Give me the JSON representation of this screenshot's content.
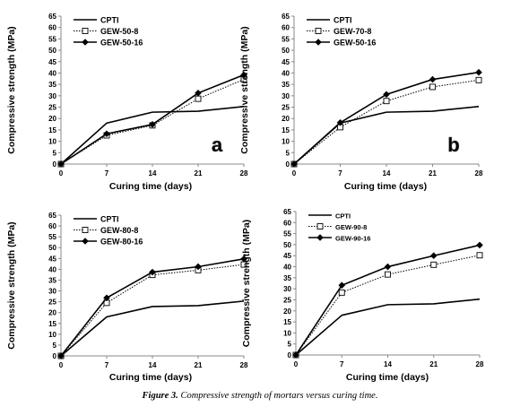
{
  "caption": {
    "label": "Figure 3.",
    "text": "Compressive strength of mortars versus curing time."
  },
  "chart_data": [
    {
      "type": "line",
      "panel_letter": "a",
      "xlabel": "Curing time (days)",
      "ylabel": "Compressive strength (MPa)",
      "x": [
        0,
        7,
        14,
        21,
        28
      ],
      "xticks": [
        0,
        7,
        14,
        21,
        28
      ],
      "ylim": [
        0,
        65
      ],
      "ytick_step": 5,
      "grid": false,
      "legend_position": "top-left",
      "series": [
        {
          "name": "CPTI",
          "marker": "none",
          "style": "solid",
          "values": [
            0,
            18,
            22.8,
            23.2,
            25.3
          ]
        },
        {
          "name": "GEW-50-8",
          "marker": "square",
          "style": "dotted",
          "values": [
            0,
            12.6,
            17,
            28.7,
            37.2
          ]
        },
        {
          "name": "GEW-50-16",
          "marker": "diamond",
          "style": "solid",
          "values": [
            0,
            13.3,
            17.4,
            31.2,
            39.2
          ]
        }
      ]
    },
    {
      "type": "line",
      "panel_letter": "b",
      "xlabel": "Curing time (days)",
      "ylabel": "Compressive strength (MPa)",
      "x": [
        0,
        7,
        14,
        21,
        28
      ],
      "xticks": [
        0,
        7,
        14,
        21,
        28
      ],
      "ylim": [
        0,
        65
      ],
      "ytick_step": 5,
      "grid": false,
      "legend_position": "top-left",
      "series": [
        {
          "name": "CPTI",
          "marker": "none",
          "style": "solid",
          "values": [
            0,
            18,
            22.8,
            23.2,
            25.3
          ]
        },
        {
          "name": "GEW-70-8",
          "marker": "square",
          "style": "dotted",
          "values": [
            0,
            16.2,
            27.7,
            33.9,
            36.9
          ]
        },
        {
          "name": "GEW-50-16",
          "marker": "diamond",
          "style": "solid",
          "values": [
            0,
            18.2,
            30.6,
            37.2,
            40.3
          ]
        }
      ]
    },
    {
      "type": "line",
      "panel_letter": "",
      "xlabel": "Curing time (days)",
      "ylabel": "Compressive strength (MPa)",
      "x": [
        0,
        7,
        14,
        21,
        28
      ],
      "xticks": [
        0,
        7,
        14,
        21,
        28
      ],
      "ylim": [
        0,
        65
      ],
      "ytick_step": 5,
      "grid": false,
      "legend_position": "top-left",
      "series": [
        {
          "name": "CPTI",
          "marker": "none",
          "style": "solid",
          "values": [
            0,
            18,
            22.8,
            23.2,
            25.3
          ]
        },
        {
          "name": "GEW-80-8",
          "marker": "square",
          "style": "dotted",
          "values": [
            0,
            24.5,
            37.4,
            39.6,
            42.2
          ]
        },
        {
          "name": "GEW-80-16",
          "marker": "diamond",
          "style": "solid",
          "values": [
            0,
            26.8,
            38.7,
            41.2,
            44.8
          ]
        }
      ]
    },
    {
      "type": "line",
      "panel_letter": "",
      "xlabel": "Curing time (days)",
      "ylabel": "Compressive strength (MPa)",
      "x": [
        0,
        7,
        14,
        21,
        28
      ],
      "xticks": [
        0,
        7,
        14,
        21,
        28
      ],
      "ylim": [
        0,
        65
      ],
      "ytick_step": 5,
      "grid": false,
      "legend_position": "top-left",
      "series": [
        {
          "name": "CPTI",
          "marker": "none",
          "style": "solid",
          "values": [
            0,
            18,
            22.8,
            23.2,
            25.3
          ]
        },
        {
          "name": "GEW-90-8",
          "marker": "square",
          "style": "dotted",
          "values": [
            0,
            28.3,
            36.5,
            40.9,
            45.2
          ]
        },
        {
          "name": "GEW-90-16",
          "marker": "diamond",
          "style": "solid",
          "values": [
            0,
            31.6,
            40,
            45,
            49.8
          ]
        }
      ]
    }
  ]
}
